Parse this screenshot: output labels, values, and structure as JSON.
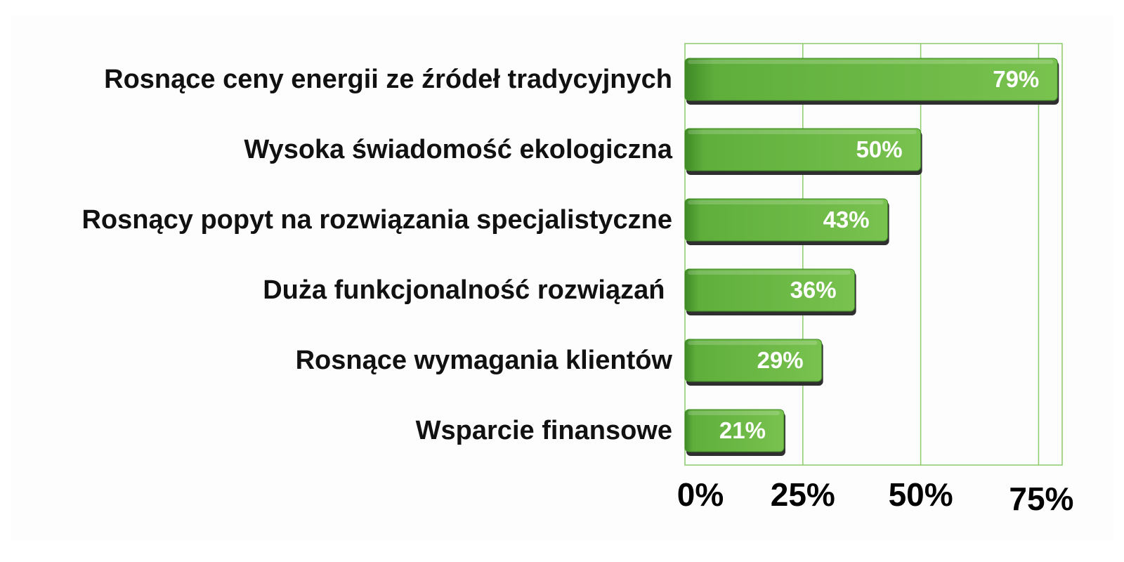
{
  "chart_data": {
    "type": "bar",
    "orientation": "horizontal",
    "title": "",
    "xlabel": "",
    "ylabel": "",
    "categories": [
      "Rosnące ceny energii ze źródeł tradycyjnych",
      "Wysoka świadomość ekologiczna",
      "Rosnący popyt na rozwiązania specjalistyczne",
      "Duża funkcjonalność rozwiązań ",
      "Rosnące wymagania klientów",
      "Wsparcie finansowe"
    ],
    "values": [
      79,
      50,
      43,
      36,
      29,
      21
    ],
    "value_labels": [
      "79%",
      "50%",
      "43%",
      "36%",
      "29%",
      "21%"
    ],
    "x_ticks": [
      0,
      25,
      50,
      75
    ],
    "x_tick_labels": [
      "0%",
      "25%",
      "50%",
      "75%"
    ],
    "xlim": [
      0,
      80
    ],
    "grid": "vertical",
    "legend": "none",
    "colors": {
      "bar": "#5fae3c",
      "bar_light": "#79c24f",
      "bar_dark": "#3f8a26",
      "bar_edge": "#2f2f2f",
      "gridline": "#8ccc6a",
      "value_text": "#ffffff",
      "category_text": "#111111",
      "tick_text": "#000000",
      "background": "#fdfdfd"
    }
  }
}
